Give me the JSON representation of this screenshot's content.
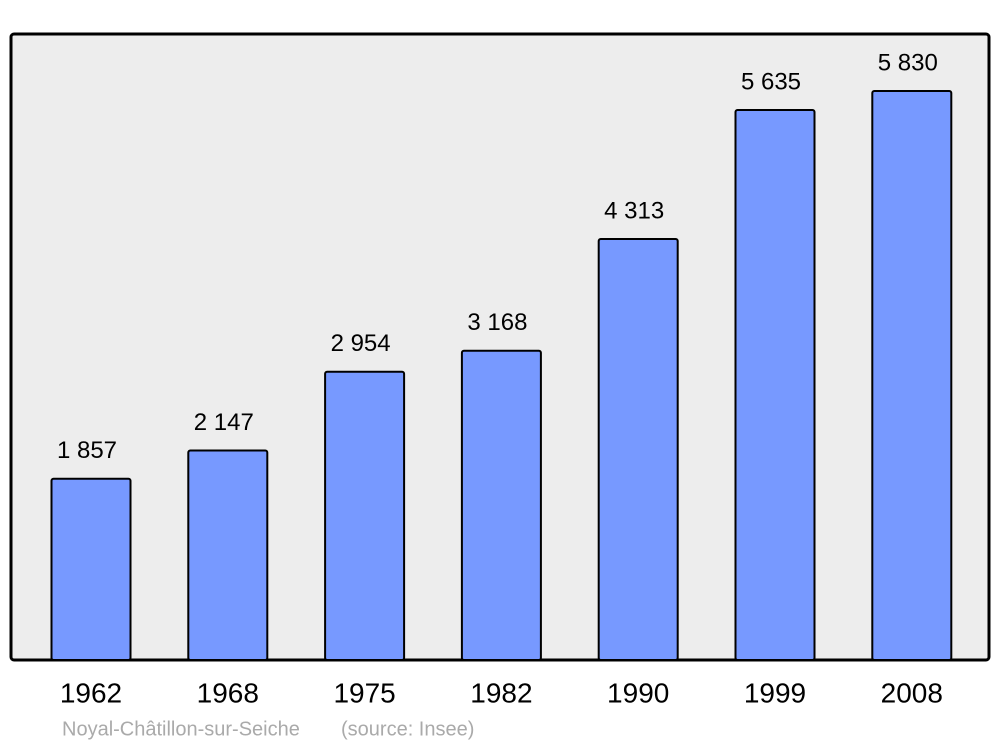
{
  "chart_data": {
    "type": "bar",
    "title": "Noyal-Châtillon-sur-Seiche",
    "source": "(source: Insee)",
    "categories": [
      "1962",
      "1968",
      "1975",
      "1982",
      "1990",
      "1999",
      "2008"
    ],
    "values": [
      1857,
      2147,
      2954,
      3168,
      4313,
      5635,
      5830
    ],
    "value_labels": [
      "1 857",
      "2 147",
      "2 954",
      "3 168",
      "4 313",
      "5 635",
      "5 830"
    ],
    "color": "#7799ff"
  }
}
